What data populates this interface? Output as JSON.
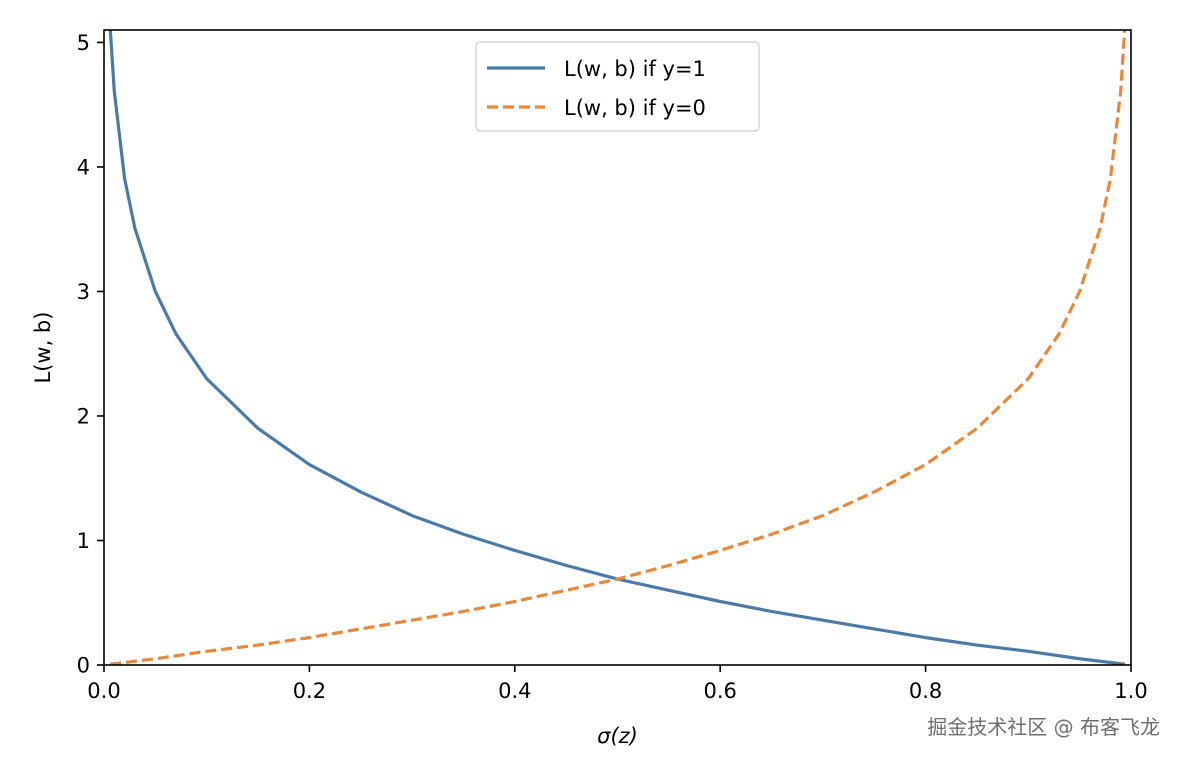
{
  "chart_data": {
    "type": "line",
    "xlabel": "σ(z)",
    "ylabel": "L(w, b)",
    "xlim": [
      0.0,
      1.0
    ],
    "ylim": [
      0,
      5.1
    ],
    "xticks": [
      0.0,
      0.2,
      0.4,
      0.6,
      0.8,
      1.0
    ],
    "xtick_labels": [
      "0.0",
      "0.2",
      "0.4",
      "0.6",
      "0.8",
      "1.0"
    ],
    "yticks": [
      0,
      1,
      2,
      3,
      4,
      5
    ],
    "ytick_labels": [
      "0",
      "1",
      "2",
      "3",
      "4",
      "5"
    ],
    "legend_position": "upper-center",
    "series": [
      {
        "name": "L(w, b) if y=1",
        "color": "#4c7aa6",
        "style": "solid",
        "x": [
          0.006,
          0.01,
          0.02,
          0.03,
          0.05,
          0.07,
          0.1,
          0.15,
          0.2,
          0.25,
          0.3,
          0.35,
          0.4,
          0.45,
          0.5,
          0.55,
          0.6,
          0.65,
          0.7,
          0.75,
          0.8,
          0.85,
          0.9,
          0.95,
          0.99,
          0.994
        ],
        "y": [
          5.12,
          4.61,
          3.91,
          3.51,
          3.0,
          2.66,
          2.3,
          1.9,
          1.61,
          1.39,
          1.2,
          1.05,
          0.92,
          0.8,
          0.69,
          0.6,
          0.51,
          0.43,
          0.36,
          0.29,
          0.22,
          0.16,
          0.11,
          0.05,
          0.01,
          0.006
        ]
      },
      {
        "name": "L(w, b) if y=0",
        "color": "#e8883a",
        "style": "dashed",
        "x": [
          0.006,
          0.01,
          0.05,
          0.1,
          0.15,
          0.2,
          0.25,
          0.3,
          0.35,
          0.4,
          0.45,
          0.5,
          0.55,
          0.6,
          0.65,
          0.7,
          0.75,
          0.8,
          0.85,
          0.9,
          0.93,
          0.95,
          0.97,
          0.98,
          0.99,
          0.994
        ],
        "y": [
          0.006,
          0.01,
          0.05,
          0.11,
          0.16,
          0.22,
          0.29,
          0.36,
          0.43,
          0.51,
          0.6,
          0.69,
          0.8,
          0.92,
          1.05,
          1.2,
          1.39,
          1.61,
          1.9,
          2.3,
          2.66,
          3.0,
          3.51,
          3.91,
          4.61,
          5.12
        ]
      }
    ]
  },
  "watermark": "掘金技术社区 @ 布客飞龙"
}
